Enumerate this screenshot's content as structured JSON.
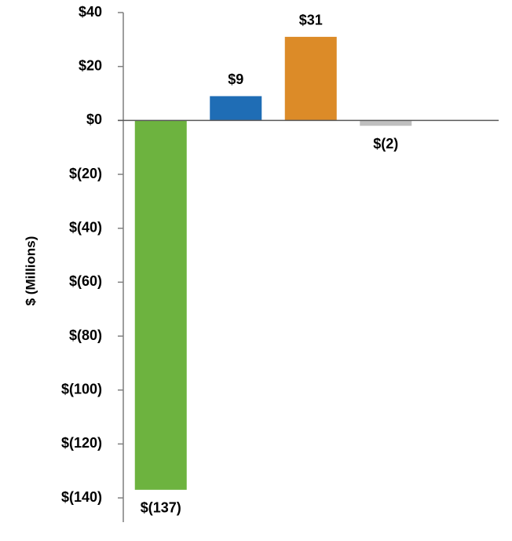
{
  "chart_data": {
    "type": "bar",
    "y_label": "$ (Millions)",
    "categories": [
      null,
      null,
      null,
      null
    ],
    "values": [
      -137,
      9,
      31,
      -2
    ],
    "value_labels": [
      "$(137)",
      "$9",
      "$31",
      "$(2)"
    ],
    "colors": [
      "#6db33f",
      "#1f6db5",
      "#dc8b28",
      "#bfbfbf"
    ],
    "ylim": [
      -149,
      40
    ],
    "yticks": [
      {
        "value": 40,
        "label": "$40"
      },
      {
        "value": 20,
        "label": "$20"
      },
      {
        "value": 0,
        "label": "$0"
      },
      {
        "value": -20,
        "label": "$(20)"
      },
      {
        "value": -40,
        "label": "$(40)"
      },
      {
        "value": -60,
        "label": "$(60)"
      },
      {
        "value": -80,
        "label": "$(80)"
      },
      {
        "value": -100,
        "label": "$(100)"
      },
      {
        "value": -120,
        "label": "$(120)"
      },
      {
        "value": -140,
        "label": "$(140)"
      }
    ],
    "grid": false
  }
}
